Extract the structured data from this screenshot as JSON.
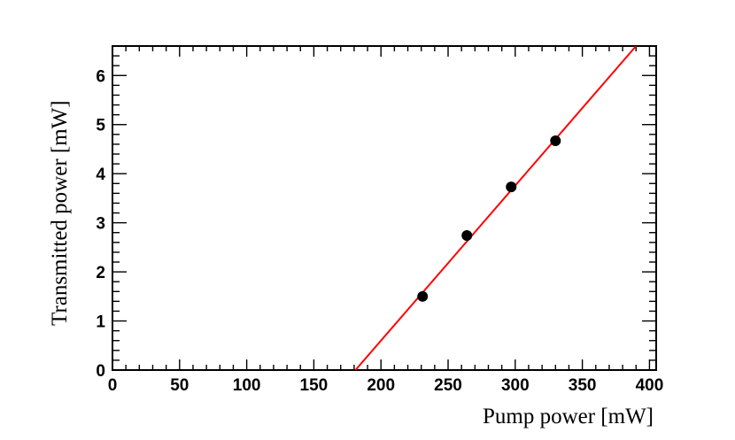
{
  "chart_data": {
    "type": "scatter",
    "title": "",
    "xlabel": "Pump power [mW]",
    "ylabel": "Transmitted power [mW]",
    "xlim": [
      0,
      405
    ],
    "ylim": [
      0,
      6.6
    ],
    "x_ticks": [
      0,
      50,
      100,
      150,
      200,
      250,
      300,
      350,
      400
    ],
    "y_ticks": [
      0,
      1,
      2,
      3,
      4,
      5,
      6
    ],
    "grid": false,
    "series": [
      {
        "type": "scatter",
        "marker_color": "#000000",
        "points": [
          {
            "x": 231,
            "y": 1.5
          },
          {
            "x": 264,
            "y": 2.74
          },
          {
            "x": 297,
            "y": 3.73
          },
          {
            "x": 330,
            "y": 4.67
          }
        ]
      },
      {
        "type": "line",
        "line_color": "#ff0000",
        "points": [
          {
            "x": 181,
            "y": 0.0
          },
          {
            "x": 390,
            "y": 6.6
          }
        ]
      }
    ]
  }
}
